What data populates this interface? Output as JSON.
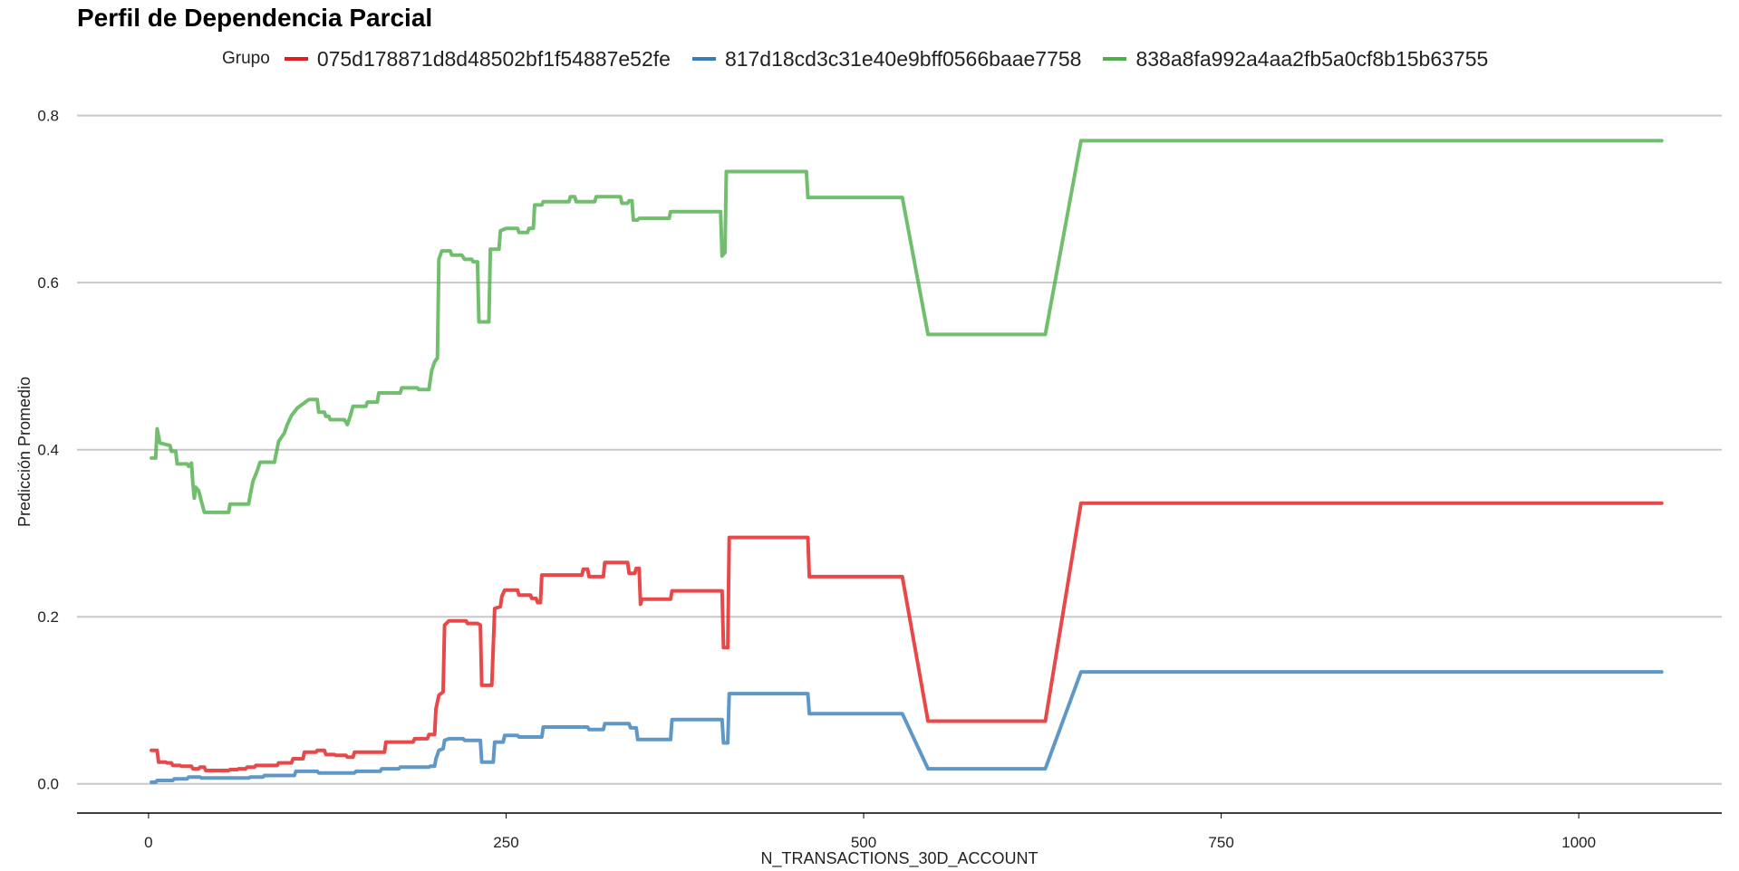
{
  "chart_data": {
    "type": "line",
    "title": "Perfil de Dependencia Parcial",
    "xlabel": "N_TRANSACTIONS_30D_ACCOUNT",
    "ylabel": "Predicción Promedio",
    "xlim": [
      -50,
      1100
    ],
    "ylim": [
      -0.035,
      0.83
    ],
    "xticks": [
      0,
      250,
      500,
      750,
      1000
    ],
    "yticks": [
      0.0,
      0.2,
      0.4,
      0.6,
      0.8
    ],
    "ytick_labels": [
      "0.0",
      "0.2",
      "0.4",
      "0.6",
      "0.8"
    ],
    "grid": "horizontal",
    "legend_title": "Grupo",
    "legend_position": "top",
    "series": [
      {
        "name": "075d178871d8d48502bf1f54887e52fe",
        "color": "#e41a1c",
        "points": [
          [
            2,
            0.04
          ],
          [
            6,
            0.04
          ],
          [
            7,
            0.026
          ],
          [
            12,
            0.026
          ],
          [
            13,
            0.025
          ],
          [
            16,
            0.025
          ],
          [
            17,
            0.022
          ],
          [
            22,
            0.022
          ],
          [
            23,
            0.021
          ],
          [
            30,
            0.021
          ],
          [
            31,
            0.018
          ],
          [
            35,
            0.018
          ],
          [
            36,
            0.02
          ],
          [
            39,
            0.02
          ],
          [
            40,
            0.016
          ],
          [
            56,
            0.016
          ],
          [
            57,
            0.017
          ],
          [
            62,
            0.017
          ],
          [
            63,
            0.018
          ],
          [
            68,
            0.018
          ],
          [
            69,
            0.02
          ],
          [
            74,
            0.02
          ],
          [
            75,
            0.022
          ],
          [
            90,
            0.022
          ],
          [
            91,
            0.025
          ],
          [
            100,
            0.025
          ],
          [
            101,
            0.03
          ],
          [
            108,
            0.03
          ],
          [
            109,
            0.038
          ],
          [
            117,
            0.038
          ],
          [
            118,
            0.04
          ],
          [
            123,
            0.04
          ],
          [
            124,
            0.035
          ],
          [
            130,
            0.035
          ],
          [
            131,
            0.034
          ],
          [
            138,
            0.034
          ],
          [
            139,
            0.032
          ],
          [
            143,
            0.032
          ],
          [
            144,
            0.038
          ],
          [
            165,
            0.038
          ],
          [
            166,
            0.05
          ],
          [
            185,
            0.05
          ],
          [
            186,
            0.054
          ],
          [
            195,
            0.054
          ],
          [
            196,
            0.059
          ],
          [
            200,
            0.059
          ],
          [
            201,
            0.09
          ],
          [
            203,
            0.106
          ],
          [
            206,
            0.11
          ],
          [
            207,
            0.19
          ],
          [
            210,
            0.195
          ],
          [
            222,
            0.195
          ],
          [
            223,
            0.192
          ],
          [
            230,
            0.192
          ],
          [
            232,
            0.19
          ],
          [
            233,
            0.118
          ],
          [
            240,
            0.118
          ],
          [
            242,
            0.21
          ],
          [
            246,
            0.212
          ],
          [
            247,
            0.224
          ],
          [
            249,
            0.232
          ],
          [
            258,
            0.232
          ],
          [
            259,
            0.226
          ],
          [
            267,
            0.226
          ],
          [
            268,
            0.222
          ],
          [
            271,
            0.222
          ],
          [
            272,
            0.217
          ],
          [
            274,
            0.217
          ],
          [
            275,
            0.25
          ],
          [
            303,
            0.25
          ],
          [
            304,
            0.257
          ],
          [
            307,
            0.257
          ],
          [
            308,
            0.248
          ],
          [
            318,
            0.248
          ],
          [
            319,
            0.265
          ],
          [
            335,
            0.265
          ],
          [
            336,
            0.252
          ],
          [
            340,
            0.252
          ],
          [
            341,
            0.258
          ],
          [
            343,
            0.258
          ],
          [
            344,
            0.215
          ],
          [
            345,
            0.221
          ],
          [
            365,
            0.221
          ],
          [
            366,
            0.231
          ],
          [
            401,
            0.231
          ],
          [
            402,
            0.163
          ],
          [
            405,
            0.163
          ],
          [
            406,
            0.295
          ],
          [
            461,
            0.295
          ],
          [
            462,
            0.248
          ],
          [
            527,
            0.248
          ],
          [
            545,
            0.075
          ],
          [
            627,
            0.075
          ],
          [
            652,
            0.336
          ],
          [
            1058,
            0.336
          ]
        ]
      },
      {
        "name": "817d18cd3c31e40e9bff0566baae7758",
        "color": "#377eb8",
        "points": [
          [
            2,
            0.002
          ],
          [
            5,
            0.002
          ],
          [
            6,
            0.004
          ],
          [
            17,
            0.004
          ],
          [
            18,
            0.006
          ],
          [
            27,
            0.006
          ],
          [
            28,
            0.008
          ],
          [
            36,
            0.008
          ],
          [
            37,
            0.007
          ],
          [
            70,
            0.007
          ],
          [
            71,
            0.008
          ],
          [
            80,
            0.008
          ],
          [
            81,
            0.01
          ],
          [
            102,
            0.01
          ],
          [
            103,
            0.015
          ],
          [
            118,
            0.015
          ],
          [
            119,
            0.013
          ],
          [
            144,
            0.013
          ],
          [
            145,
            0.015
          ],
          [
            162,
            0.015
          ],
          [
            163,
            0.018
          ],
          [
            175,
            0.018
          ],
          [
            176,
            0.02
          ],
          [
            196,
            0.02
          ],
          [
            197,
            0.021
          ],
          [
            200,
            0.021
          ],
          [
            201,
            0.03
          ],
          [
            203,
            0.04
          ],
          [
            206,
            0.042
          ],
          [
            207,
            0.052
          ],
          [
            210,
            0.054
          ],
          [
            220,
            0.054
          ],
          [
            221,
            0.052
          ],
          [
            232,
            0.052
          ],
          [
            233,
            0.026
          ],
          [
            241,
            0.026
          ],
          [
            242,
            0.05
          ],
          [
            248,
            0.05
          ],
          [
            249,
            0.058
          ],
          [
            258,
            0.058
          ],
          [
            259,
            0.056
          ],
          [
            275,
            0.056
          ],
          [
            276,
            0.068
          ],
          [
            307,
            0.068
          ],
          [
            308,
            0.065
          ],
          [
            318,
            0.065
          ],
          [
            319,
            0.072
          ],
          [
            336,
            0.072
          ],
          [
            337,
            0.067
          ],
          [
            341,
            0.067
          ],
          [
            342,
            0.053
          ],
          [
            365,
            0.053
          ],
          [
            366,
            0.077
          ],
          [
            401,
            0.077
          ],
          [
            402,
            0.049
          ],
          [
            405,
            0.049
          ],
          [
            406,
            0.108
          ],
          [
            461,
            0.108
          ],
          [
            462,
            0.084
          ],
          [
            527,
            0.084
          ],
          [
            545,
            0.018
          ],
          [
            627,
            0.018
          ],
          [
            652,
            0.134
          ],
          [
            1058,
            0.134
          ]
        ]
      },
      {
        "name": "838a8fa992a4aa2fb5a0cf8b15b63755",
        "color": "#4daf4a",
        "points": [
          [
            2,
            0.39
          ],
          [
            5,
            0.39
          ],
          [
            6,
            0.425
          ],
          [
            8,
            0.408
          ],
          [
            15,
            0.405
          ],
          [
            16,
            0.398
          ],
          [
            19,
            0.398
          ],
          [
            20,
            0.383
          ],
          [
            27,
            0.383
          ],
          [
            28,
            0.38
          ],
          [
            30,
            0.384
          ],
          [
            31,
            0.36
          ],
          [
            32,
            0.342
          ],
          [
            33,
            0.355
          ],
          [
            35,
            0.351
          ],
          [
            37,
            0.338
          ],
          [
            39,
            0.325
          ],
          [
            56,
            0.325
          ],
          [
            57,
            0.335
          ],
          [
            70,
            0.335
          ],
          [
            71,
            0.345
          ],
          [
            73,
            0.362
          ],
          [
            76,
            0.375
          ],
          [
            78,
            0.385
          ],
          [
            88,
            0.385
          ],
          [
            91,
            0.41
          ],
          [
            95,
            0.42
          ],
          [
            97,
            0.43
          ],
          [
            100,
            0.441
          ],
          [
            104,
            0.45
          ],
          [
            108,
            0.455
          ],
          [
            112,
            0.46
          ],
          [
            118,
            0.46
          ],
          [
            119,
            0.445
          ],
          [
            123,
            0.445
          ],
          [
            124,
            0.44
          ],
          [
            126,
            0.44
          ],
          [
            127,
            0.436
          ],
          [
            137,
            0.436
          ],
          [
            139,
            0.43
          ],
          [
            141,
            0.44
          ],
          [
            143,
            0.452
          ],
          [
            152,
            0.452
          ],
          [
            153,
            0.457
          ],
          [
            160,
            0.457
          ],
          [
            161,
            0.468
          ],
          [
            176,
            0.468
          ],
          [
            177,
            0.474
          ],
          [
            188,
            0.474
          ],
          [
            189,
            0.472
          ],
          [
            196,
            0.472
          ],
          [
            198,
            0.495
          ],
          [
            200,
            0.505
          ],
          [
            202,
            0.51
          ],
          [
            203,
            0.628
          ],
          [
            205,
            0.638
          ],
          [
            211,
            0.638
          ],
          [
            212,
            0.633
          ],
          [
            219,
            0.633
          ],
          [
            221,
            0.628
          ],
          [
            226,
            0.628
          ],
          [
            227,
            0.625
          ],
          [
            230,
            0.625
          ],
          [
            231,
            0.553
          ],
          [
            238,
            0.553
          ],
          [
            239,
            0.64
          ],
          [
            245,
            0.64
          ],
          [
            246,
            0.662
          ],
          [
            250,
            0.665
          ],
          [
            258,
            0.665
          ],
          [
            259,
            0.66
          ],
          [
            265,
            0.66
          ],
          [
            266,
            0.665
          ],
          [
            269,
            0.665
          ],
          [
            270,
            0.693
          ],
          [
            275,
            0.693
          ],
          [
            276,
            0.697
          ],
          [
            294,
            0.697
          ],
          [
            295,
            0.703
          ],
          [
            298,
            0.703
          ],
          [
            299,
            0.697
          ],
          [
            312,
            0.697
          ],
          [
            313,
            0.703
          ],
          [
            330,
            0.703
          ],
          [
            331,
            0.695
          ],
          [
            335,
            0.695
          ],
          [
            336,
            0.698
          ],
          [
            338,
            0.698
          ],
          [
            339,
            0.675
          ],
          [
            342,
            0.675
          ],
          [
            343,
            0.677
          ],
          [
            364,
            0.677
          ],
          [
            365,
            0.685
          ],
          [
            400,
            0.685
          ],
          [
            401,
            0.632
          ],
          [
            403,
            0.636
          ],
          [
            404,
            0.733
          ],
          [
            460,
            0.733
          ],
          [
            461,
            0.702
          ],
          [
            527,
            0.702
          ],
          [
            545,
            0.538
          ],
          [
            627,
            0.538
          ],
          [
            652,
            0.77
          ],
          [
            1058,
            0.77
          ]
        ]
      }
    ]
  }
}
